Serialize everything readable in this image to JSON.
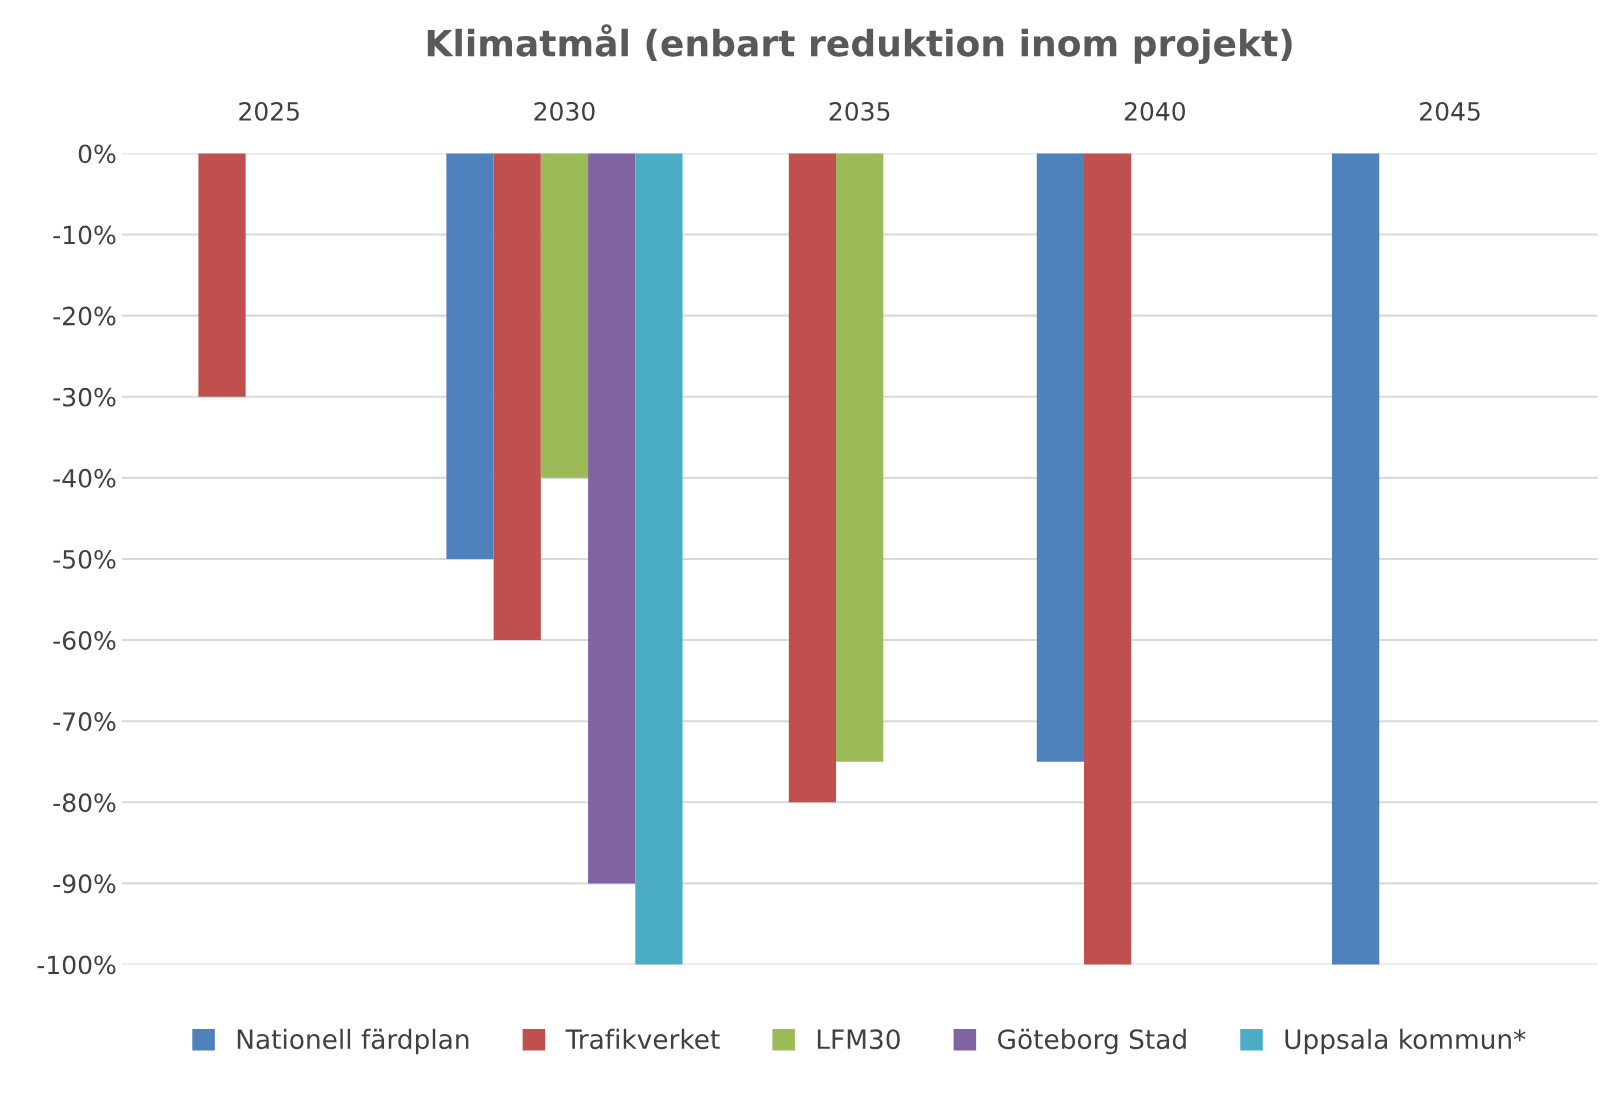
{
  "chart_data": {
    "type": "bar",
    "title": "Klimatmål (enbart reduktion inom projekt)",
    "categories": [
      "2025",
      "2030",
      "2035",
      "2040",
      "2045"
    ],
    "series": [
      {
        "name": "Nationell färdplan",
        "color": "#4f81bd",
        "values": [
          null,
          -50,
          null,
          -75,
          -100
        ]
      },
      {
        "name": "Trafikverket",
        "color": "#c0504d",
        "values": [
          -30,
          -60,
          -80,
          -100,
          null
        ]
      },
      {
        "name": "LFM30",
        "color": "#9bbb59",
        "values": [
          null,
          -40,
          -75,
          null,
          null
        ]
      },
      {
        "name": "Göteborg Stad",
        "color": "#8064a2",
        "values": [
          null,
          -90,
          null,
          null,
          null
        ]
      },
      {
        "name": "Uppsala kommun*",
        "color": "#4bacc6",
        "values": [
          null,
          -100,
          null,
          null,
          null
        ]
      }
    ],
    "ylim": [
      -100,
      0
    ],
    "yticks": [
      {
        "value": 0,
        "label": "0%"
      },
      {
        "value": -10,
        "label": "-10%"
      },
      {
        "value": -20,
        "label": "-20%"
      },
      {
        "value": -30,
        "label": "-30%"
      },
      {
        "value": -40,
        "label": "-40%"
      },
      {
        "value": -50,
        "label": "-50%"
      },
      {
        "value": -60,
        "label": "-60%"
      },
      {
        "value": -70,
        "label": "-70%"
      },
      {
        "value": -80,
        "label": "-80%"
      },
      {
        "value": -90,
        "label": "-90%"
      },
      {
        "value": -100,
        "label": "-100%"
      }
    ],
    "grid": "y",
    "legend": "bottom"
  }
}
